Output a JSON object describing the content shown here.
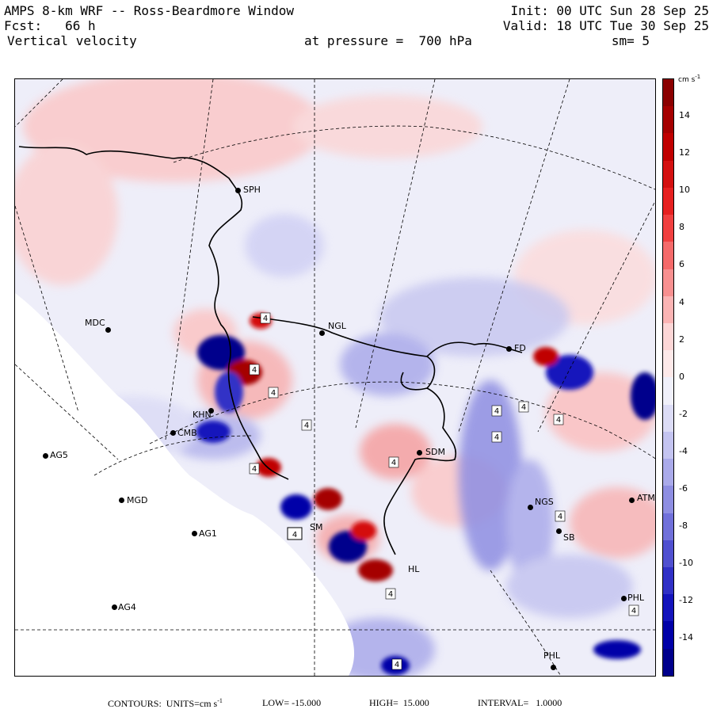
{
  "header": {
    "model": "AMPS 8-km WRF -- Ross-Beardmore Window",
    "forecast": "Fcst:   66 h",
    "field": "Vertical velocity",
    "pressure": "at pressure =  700 hPa",
    "init": "Init: 00 UTC Sun 28 Sep 25",
    "valid": "Valid: 18 UTC Tue 30 Sep 25",
    "smoothing": "sm= 5"
  },
  "colorbar": {
    "unit": "cm s",
    "unit_exp": "-1",
    "labels": [
      "14",
      "12",
      "10",
      "8",
      "6",
      "4",
      "2",
      "0",
      "-2",
      "-4",
      "-6",
      "-8",
      "-10",
      "-12",
      "-14"
    ],
    "colors": [
      "#8b0000",
      "#a50000",
      "#c00000",
      "#d41010",
      "#e62020",
      "#f04040",
      "#f56a6a",
      "#f89090",
      "#fbb4b4",
      "#fcd6d6",
      "#fde9e9",
      "#f0f0fa",
      "#dcdcf6",
      "#c4c4f0",
      "#aaaaea",
      "#8e8ee2",
      "#7070da",
      "#5050d0",
      "#3030c6",
      "#1414bc",
      "#0000a8",
      "#00008c"
    ]
  },
  "stations": [
    {
      "name": "SPH"
    },
    {
      "name": "MDC"
    },
    {
      "name": "NGL"
    },
    {
      "name": "FD"
    },
    {
      "name": "KHN"
    },
    {
      "name": "CMB"
    },
    {
      "name": "AG5"
    },
    {
      "name": "SDM"
    },
    {
      "name": "MGD"
    },
    {
      "name": "AG1"
    },
    {
      "name": "SM"
    },
    {
      "name": "NGS"
    },
    {
      "name": "ATM"
    },
    {
      "name": "SB"
    },
    {
      "name": "AG4"
    },
    {
      "name": "HL"
    },
    {
      "name": "PHL"
    },
    {
      "name": "PHL"
    }
  ],
  "contour_label": "4",
  "footer": {
    "contours": "CONTOURS:  UNITS=cm s",
    "unit_exp": "-1",
    "low": "LOW= -15.000",
    "high": "HIGH=  15.000",
    "interval": "INTERVAL=   1.0000"
  }
}
